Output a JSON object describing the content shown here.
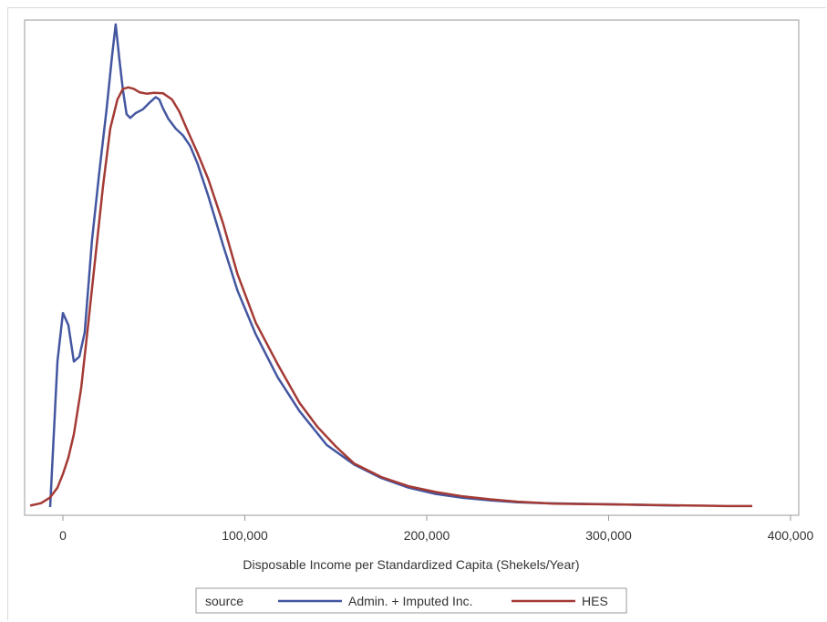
{
  "chart_data": {
    "type": "line",
    "title": "",
    "xlabel": "Disposable Income per Standardized Capita (Shekels/Year)",
    "ylabel": "",
    "xlim": [
      -20000,
      405000
    ],
    "ylim": [
      0,
      1.0
    ],
    "x_ticks": [
      0,
      100000,
      200000,
      300000,
      400000
    ],
    "x_tick_labels": [
      "0",
      "100,000",
      "200,000",
      "300,000",
      "400,000"
    ],
    "grid": false,
    "legend": {
      "title": "source",
      "placement": "bottom-center"
    },
    "series": [
      {
        "name": "Admin. + Imputed Inc.",
        "color": "#4356a0",
        "x": [
          -7000,
          -3000,
          0,
          3000,
          6000,
          9000,
          12000,
          16000,
          20000,
          24000,
          27000,
          29000,
          31000,
          33000,
          35000,
          37000,
          40000,
          44000,
          48000,
          51000,
          53000,
          55000,
          58000,
          62000,
          66000,
          70000,
          74000,
          80000,
          88000,
          96000,
          106000,
          118000,
          130000,
          145000,
          160000,
          175000,
          190000,
          205000,
          220000,
          235000,
          250000,
          265000,
          280000,
          295000,
          310000,
          325000,
          339000
        ],
        "y": [
          0.0,
          0.3,
          0.4,
          0.375,
          0.3,
          0.31,
          0.36,
          0.55,
          0.69,
          0.82,
          0.93,
          0.995,
          0.925,
          0.86,
          0.81,
          0.802,
          0.812,
          0.82,
          0.835,
          0.845,
          0.84,
          0.822,
          0.8,
          0.78,
          0.766,
          0.744,
          0.708,
          0.64,
          0.54,
          0.446,
          0.356,
          0.268,
          0.198,
          0.128,
          0.088,
          0.06,
          0.04,
          0.027,
          0.019,
          0.014,
          0.01,
          0.008,
          0.007,
          0.006,
          0.005,
          0.004,
          0.003
        ]
      },
      {
        "name": "HES",
        "color": "#a43a35",
        "x": [
          -18000,
          -12000,
          -7000,
          -3000,
          0,
          3000,
          6000,
          10000,
          14000,
          18000,
          22000,
          26000,
          30000,
          33000,
          36000,
          39000,
          42000,
          46000,
          50000,
          55000,
          60000,
          64000,
          68000,
          74000,
          80000,
          88000,
          96000,
          106000,
          118000,
          130000,
          140000,
          150000,
          160000,
          175000,
          190000,
          205000,
          220000,
          235000,
          250000,
          270000,
          290000,
          310000,
          330000,
          350000,
          365000,
          379000
        ],
        "y": [
          0.003,
          0.008,
          0.02,
          0.04,
          0.068,
          0.102,
          0.15,
          0.245,
          0.38,
          0.52,
          0.66,
          0.78,
          0.84,
          0.862,
          0.865,
          0.862,
          0.855,
          0.852,
          0.854,
          0.853,
          0.84,
          0.815,
          0.78,
          0.73,
          0.675,
          0.585,
          0.48,
          0.38,
          0.295,
          0.215,
          0.165,
          0.125,
          0.09,
          0.062,
          0.043,
          0.031,
          0.022,
          0.016,
          0.011,
          0.007,
          0.006,
          0.005,
          0.004,
          0.003,
          0.002,
          0.002
        ]
      }
    ]
  }
}
